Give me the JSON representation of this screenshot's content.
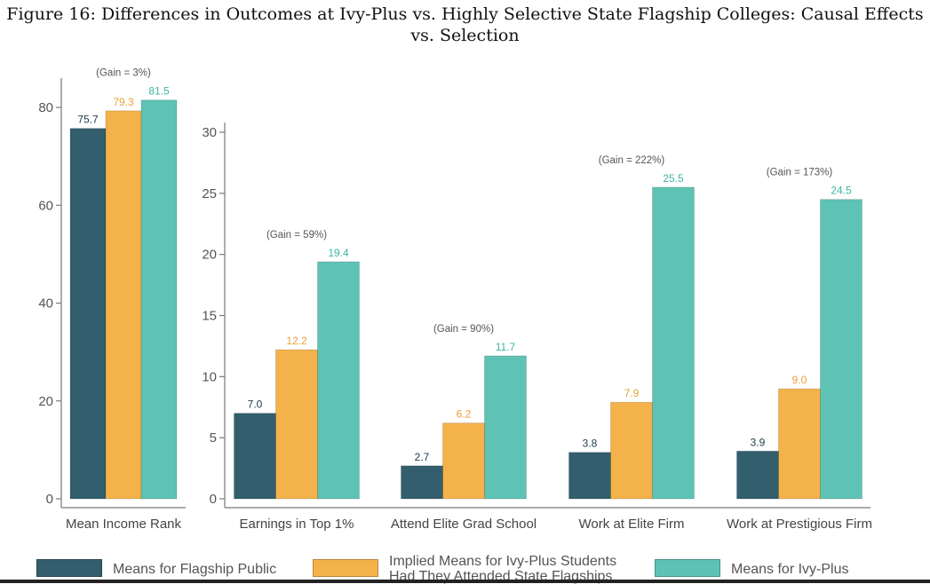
{
  "title": "Figure 16: Differences in Outcomes at Ivy-Plus vs. Highly Selective State Flagship Colleges: Causal Effects vs. Selection",
  "colors": {
    "flagship": "#325e6e",
    "implied": "#f4b24a",
    "ivy": "#5ec3b4",
    "axis": "#777777"
  },
  "legend": {
    "flagship": "Means for Flagship Public",
    "implied_line1": "Implied Means for Ivy-Plus Students",
    "implied_line2": "Had They Attended State Flagships",
    "ivy": "Means for Ivy-Plus"
  },
  "chart_data": [
    {
      "type": "bar",
      "title": "",
      "categories": [
        "Mean Income Rank"
      ],
      "ylim": [
        0,
        85
      ],
      "yticks": [
        0,
        20,
        40,
        60,
        80
      ],
      "series": [
        {
          "name": "Means for Flagship Public",
          "values": [
            75.7
          ],
          "labels": [
            "75.7"
          ]
        },
        {
          "name": "Implied Means for Ivy-Plus Students Had They Attended State Flagships",
          "values": [
            79.3
          ],
          "labels": [
            "79.3"
          ]
        },
        {
          "name": "Means for Ivy-Plus",
          "values": [
            81.5
          ],
          "labels": [
            "81.5"
          ]
        }
      ],
      "annotations": [
        "(Gain = 3%)"
      ]
    },
    {
      "type": "bar",
      "title": "",
      "categories": [
        "Earnings in Top 1%",
        "Attend Elite Grad School",
        "Work at Elite Firm",
        "Work at Prestigious Firm"
      ],
      "ylim": [
        0,
        30.8
      ],
      "yticks": [
        0,
        5,
        10,
        15,
        20,
        25,
        30
      ],
      "series": [
        {
          "name": "Means for Flagship Public",
          "values": [
            7.0,
            2.7,
            3.8,
            3.9
          ],
          "labels": [
            "7.0",
            "2.7",
            "3.8",
            "3.9"
          ]
        },
        {
          "name": "Implied Means for Ivy-Plus Students Had They Attended State Flagships",
          "values": [
            12.2,
            6.2,
            7.9,
            9.0
          ],
          "labels": [
            "12.2",
            "6.2",
            "7.9",
            "9.0"
          ]
        },
        {
          "name": "Means for Ivy-Plus",
          "values": [
            19.4,
            11.7,
            25.5,
            24.5
          ],
          "labels": [
            "19.4",
            "11.7",
            "25.5",
            "24.5"
          ]
        }
      ],
      "annotations": [
        "(Gain = 59%)",
        "(Gain = 90%)",
        "(Gain = 222%)",
        "(Gain = 173%)"
      ]
    }
  ]
}
